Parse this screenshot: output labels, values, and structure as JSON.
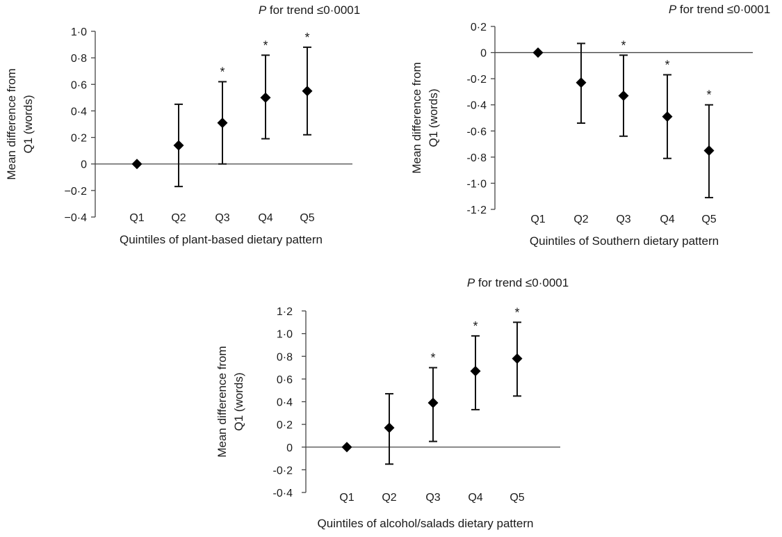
{
  "chart_data": [
    {
      "type": "scatter",
      "annotation_prefix": "P",
      "annotation_rest": " for trend ≤0·0001",
      "ylabel_line1": "Mean difference from",
      "ylabel_line2": "Q1 (words)",
      "xlabel": "Quintiles of plant-based dietary pattern",
      "categories": [
        "Q1",
        "Q2",
        "Q3",
        "Q4",
        "Q5"
      ],
      "values": [
        0,
        0.14,
        0.31,
        0.5,
        0.55
      ],
      "err_low": [
        0,
        -0.17,
        0,
        0.19,
        0.22
      ],
      "err_high": [
        0,
        0.45,
        0.62,
        0.82,
        0.88
      ],
      "significant": [
        false,
        false,
        true,
        true,
        true
      ],
      "significance_marker": "*",
      "ylim": [
        -0.4,
        1.0
      ],
      "yticks": [
        1.0,
        0.8,
        0.6,
        0.4,
        0.2,
        0,
        -0.2,
        -0.4
      ],
      "ytick_labels": [
        "1·0",
        "0·8",
        "0·6",
        "0·4",
        "0·2",
        "0",
        "−0·2",
        "−0·4"
      ]
    },
    {
      "type": "scatter",
      "annotation_prefix": "P",
      "annotation_rest": " for trend ≤0·0001",
      "ylabel_line1": "Mean difference from",
      "ylabel_line2": "Q1 (words)",
      "xlabel": "Quintiles of Southern dietary pattern",
      "categories": [
        "Q1",
        "Q2",
        "Q3",
        "Q4",
        "Q5"
      ],
      "values": [
        0,
        -0.23,
        -0.33,
        -0.49,
        -0.75
      ],
      "err_low": [
        0,
        -0.54,
        -0.64,
        -0.81,
        -1.11
      ],
      "err_high": [
        0,
        0.07,
        -0.02,
        -0.17,
        -0.4
      ],
      "significant": [
        false,
        false,
        true,
        true,
        true
      ],
      "significance_marker": "*",
      "ylim": [
        -1.2,
        0.2
      ],
      "yticks": [
        0.2,
        0,
        -0.2,
        -0.4,
        -0.6,
        -0.8,
        -1.0,
        -1.2
      ],
      "ytick_labels": [
        "0·2",
        "0",
        "-0·2",
        "-0·4",
        "-0·6",
        "-0·8",
        "-1·0",
        "-1·2"
      ]
    },
    {
      "type": "scatter",
      "annotation_prefix": "P",
      "annotation_rest": " for trend ≤0·0001",
      "ylabel_line1": "Mean difference from",
      "ylabel_line2": "Q1 (words)",
      "xlabel": "Quintiles of alcohol/salads dietary pattern",
      "categories": [
        "Q1",
        "Q2",
        "Q3",
        "Q4",
        "Q5"
      ],
      "values": [
        0,
        0.17,
        0.39,
        0.67,
        0.78
      ],
      "err_low": [
        0,
        -0.15,
        0.05,
        0.33,
        0.45
      ],
      "err_high": [
        0,
        0.47,
        0.7,
        0.98,
        1.1
      ],
      "significant": [
        false,
        false,
        true,
        true,
        true
      ],
      "significance_marker": "*",
      "ylim": [
        -0.4,
        1.2
      ],
      "yticks": [
        1.2,
        1.0,
        0.8,
        0.6,
        0.4,
        0.2,
        0,
        -0.2,
        -0.4
      ],
      "ytick_labels": [
        "1·2",
        "1·0",
        "0·8",
        "0·6",
        "0·4",
        "0·2",
        "0",
        "-0·2",
        "-0·4"
      ]
    }
  ]
}
